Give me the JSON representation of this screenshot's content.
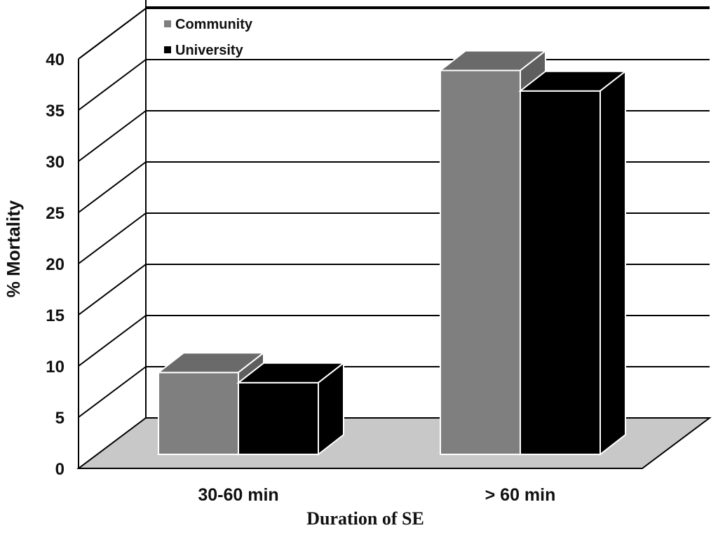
{
  "chart_data": {
    "type": "bar",
    "title": "",
    "xlabel": "Duration of SE",
    "ylabel": "% Mortality",
    "categories": [
      "30-60 min",
      "> 60 min"
    ],
    "series": [
      {
        "name": "Community",
        "values": [
          8,
          37.5
        ],
        "color": "#7f7f7f"
      },
      {
        "name": "University",
        "values": [
          7,
          35.5
        ],
        "color": "#000000"
      }
    ],
    "ylim": [
      0,
      40
    ],
    "yticks": [
      0,
      5,
      10,
      15,
      20,
      25,
      30,
      35,
      40
    ],
    "grid": true,
    "three_d": true,
    "floor_color": "#c8c8c8",
    "legend_position": "top-left"
  }
}
